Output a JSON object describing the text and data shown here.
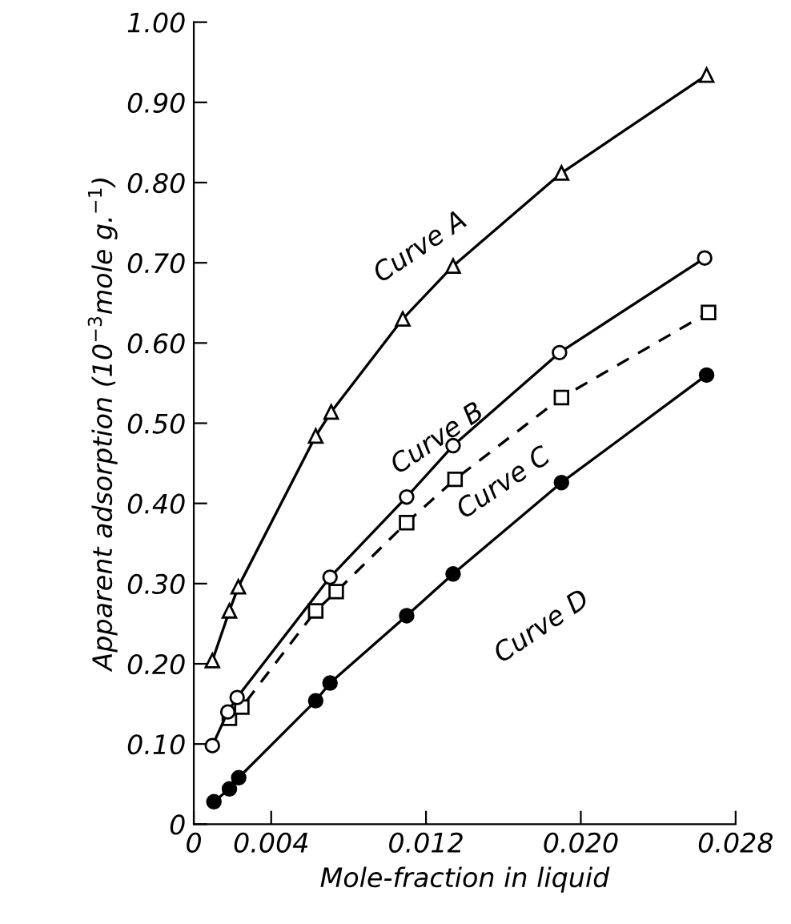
{
  "chart_data": {
    "type": "line",
    "xlabel": "Mole-fraction in liquid",
    "ylabel": "Apparent adsorption (10$^{−3}$mole g.$^{−1}$)",
    "xlim": [
      0,
      0.028
    ],
    "ylim": [
      0,
      1.0
    ],
    "xticks": [
      0,
      {
        "value": 0.004,
        "label": "0.004"
      },
      {
        "value": 0.012,
        "label": "0.012"
      },
      {
        "value": 0.02,
        "label": "0.020"
      },
      {
        "value": 0.028,
        "label": "0.028"
      }
    ],
    "yticks": [
      0,
      {
        "value": 0.1,
        "label": "0.10"
      },
      {
        "value": 0.2,
        "label": "0.20"
      },
      {
        "value": 0.3,
        "label": "0.30"
      },
      {
        "value": 0.4,
        "label": "0.40"
      },
      {
        "value": 0.5,
        "label": "0.50"
      },
      {
        "value": 0.6,
        "label": "0.60"
      },
      {
        "value": 0.7,
        "label": "0.70"
      },
      {
        "value": 0.8,
        "label": "0.80"
      },
      {
        "value": 0.9,
        "label": "0.90"
      },
      {
        "value": 1.0,
        "label": "1.00"
      }
    ],
    "grid": false,
    "legend": false,
    "series": [
      {
        "name": "Curve A",
        "color": "#000000",
        "marker": "triangle",
        "line_style": "solid",
        "x": [
          0.00096,
          0.00184,
          0.0023,
          0.0063,
          0.0071,
          0.0108,
          0.0134,
          0.019,
          0.0265
        ],
        "values": [
          0.204,
          0.266,
          0.296,
          0.484,
          0.514,
          0.63,
          0.696,
          0.812,
          0.934
        ]
      },
      {
        "name": "Curve B",
        "color": "#000000",
        "marker": "circle",
        "line_style": "solid",
        "x": [
          0.00096,
          0.00176,
          0.00224,
          0.00704,
          0.011,
          0.0134,
          0.0189,
          0.0264
        ],
        "values": [
          0.098,
          0.14,
          0.158,
          0.308,
          0.408,
          0.472,
          0.588,
          0.706
        ]
      },
      {
        "name": "Curve C",
        "color": "#000000",
        "marker": "square",
        "line_style": "dashed",
        "x": [
          0.00184,
          0.00248,
          0.0063,
          0.00736,
          0.011,
          0.0135,
          0.019,
          0.0266
        ],
        "values": [
          0.132,
          0.146,
          0.266,
          0.29,
          0.376,
          0.43,
          0.532,
          0.638
        ]
      },
      {
        "name": "Curve D",
        "color": "#000000",
        "marker": "circle",
        "line_style": "solid",
        "x": [
          0.00104,
          0.00184,
          0.00232,
          0.0063,
          0.00704,
          0.011,
          0.0134,
          0.019,
          0.0265
        ],
        "values": [
          0.028,
          0.044,
          0.058,
          0.154,
          0.176,
          0.26,
          0.312,
          0.426,
          0.56
        ]
      }
    ]
  }
}
